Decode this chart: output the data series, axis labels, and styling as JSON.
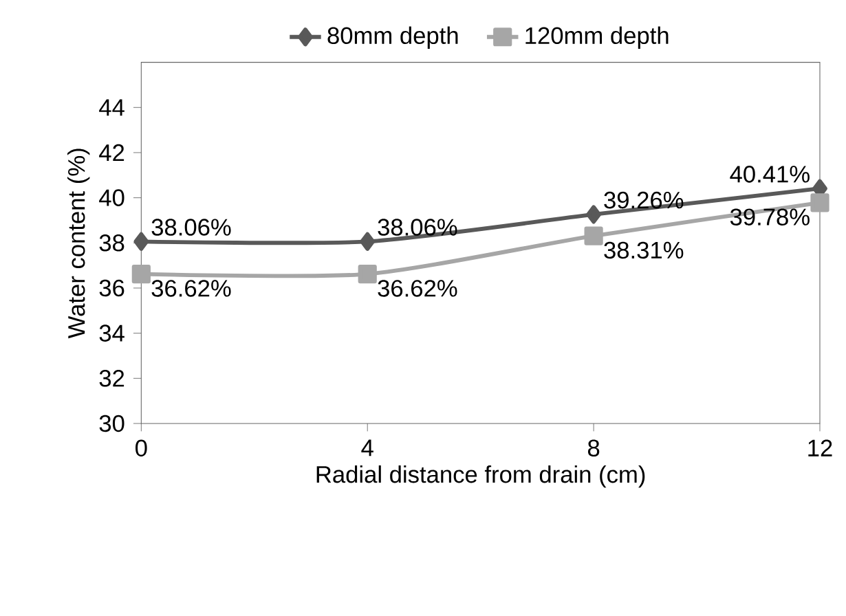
{
  "chart_data": {
    "type": "line",
    "xlabel": "Radial distance  from drain (cm)",
    "ylabel": "Water content (%)",
    "x": [
      0,
      4,
      8,
      12
    ],
    "xlim": [
      0,
      12
    ],
    "xticks": [
      0,
      4,
      8,
      12
    ],
    "ylim": [
      30,
      46
    ],
    "yticks": [
      30,
      32,
      34,
      36,
      38,
      40,
      42,
      44
    ],
    "legend": "top",
    "grid": false,
    "series": [
      {
        "name": "80mm depth",
        "color": "#595959",
        "marker": "diamond",
        "values": [
          38.06,
          38.06,
          39.26,
          40.41
        ],
        "value_labels": [
          "38.06%",
          "38.06%",
          "39.26%",
          "40.41%"
        ]
      },
      {
        "name": "120mm depth",
        "color": "#a6a6a6",
        "marker": "square",
        "values": [
          36.62,
          36.62,
          38.31,
          39.78
        ],
        "value_labels": [
          "36.62%",
          "36.62%",
          "38.31%",
          "39.78%"
        ]
      }
    ]
  }
}
